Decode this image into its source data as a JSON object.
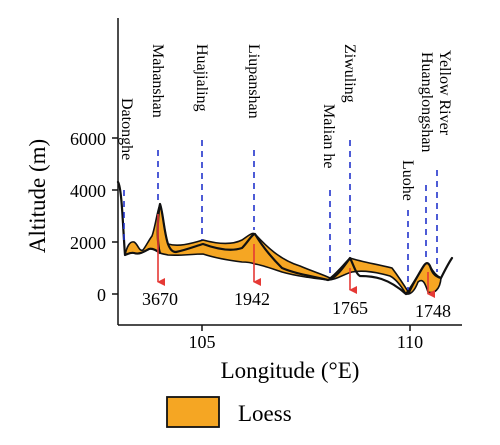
{
  "axes": {
    "ylabel": "Altitude (m)",
    "xlabel": "Longitude (°E)",
    "y_ticks": [
      "6000",
      "4000",
      "2000",
      "0"
    ],
    "x_ticks": [
      "105",
      "110"
    ]
  },
  "places": [
    {
      "name": "Datonghe"
    },
    {
      "name": "Mahanshan"
    },
    {
      "name": "Huajialing"
    },
    {
      "name": "Liupanshan"
    },
    {
      "name": "Malian he"
    },
    {
      "name": "Ziwuling"
    },
    {
      "name": "Luohe"
    },
    {
      "name": "Huanglongshan"
    },
    {
      "name": "Yellow River"
    }
  ],
  "elevations": [
    "3670",
    "1942",
    "1765",
    "1748"
  ],
  "legend": {
    "label": "Loess",
    "color": "#F5A623"
  },
  "colors": {
    "loess": "#F5A623",
    "marker_line": "#2233CC",
    "arrow": "#E53935",
    "outline": "#111111"
  }
}
